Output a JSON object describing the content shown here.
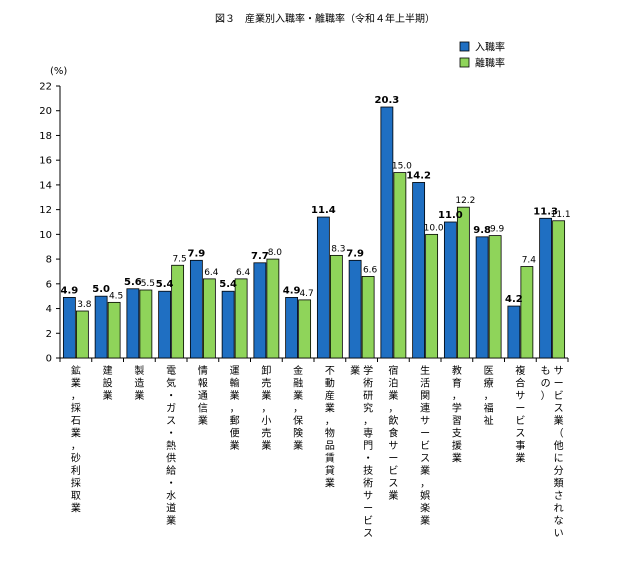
{
  "chart_data": {
    "type": "bar",
    "title": "図３　産業別入職率・離職率（令和４年上半期）",
    "ylabel": "(%)",
    "ylim": [
      0,
      22
    ],
    "yticks": [
      0,
      2,
      4,
      6,
      8,
      10,
      12,
      14,
      16,
      18,
      20,
      22
    ],
    "grid": false,
    "legend_position": "top-right",
    "categories": [
      "鉱業，採石業，砂利採取業",
      "建設業",
      "製造業",
      "電気・ガス・熱供給・水道業",
      "情報通信業",
      "運輸業，郵便業",
      "卸売業，小売業",
      "金融業，保険業",
      "不動産業，物品賃貸業",
      "学術研究，専門・技術サービス業",
      "宿泊業，飲食サービス業",
      "生活関連サービス業，娯楽業",
      "教育，学習支援業",
      "医療，福祉",
      "複合サービス事業",
      "サービス業（他に分類されないもの）"
    ],
    "series": [
      {
        "name": "入職率",
        "color": "#1f6fc2",
        "values": [
          4.9,
          5.0,
          5.6,
          5.4,
          7.9,
          5.4,
          7.7,
          4.9,
          11.4,
          7.9,
          20.3,
          14.2,
          11.0,
          9.8,
          4.2,
          11.3
        ],
        "value_labels": [
          "4.9",
          "5.0",
          "5.6",
          "5.4",
          "7.9",
          "5.4",
          "7.7",
          "4.9",
          "11.4",
          "7.9",
          "20.3",
          "14.2",
          "11.0",
          "9.8",
          "4.2",
          "11.3"
        ]
      },
      {
        "name": "離職率",
        "color": "#8fd45a",
        "values": [
          3.8,
          4.5,
          5.5,
          7.5,
          6.4,
          6.4,
          8.0,
          4.7,
          8.3,
          6.6,
          15.0,
          10.0,
          12.2,
          9.9,
          7.4,
          11.1
        ],
        "value_labels": [
          "3.8",
          "4.5",
          "5.5",
          "7.5",
          "6.4",
          "6.4",
          "8.0",
          "4.7",
          "8.3",
          "6.6",
          "15.0",
          "10.0",
          "12.2",
          "9.9",
          "7.4",
          "11.1"
        ]
      }
    ]
  }
}
